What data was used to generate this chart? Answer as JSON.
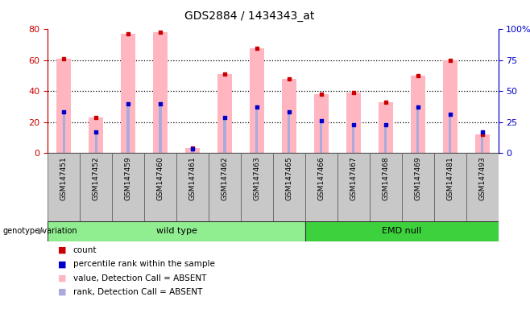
{
  "title": "GDS2884 / 1434343_at",
  "samples": [
    "GSM147451",
    "GSM147452",
    "GSM147459",
    "GSM147460",
    "GSM147461",
    "GSM147462",
    "GSM147463",
    "GSM147465",
    "GSM147466",
    "GSM147467",
    "GSM147468",
    "GSM147469",
    "GSM147481",
    "GSM147493"
  ],
  "pink_values": [
    61,
    23,
    77,
    78,
    3,
    51,
    68,
    48,
    38,
    39,
    33,
    50,
    60,
    12
  ],
  "blue_ranks": [
    33,
    17,
    40,
    40,
    3,
    29,
    37,
    33,
    26,
    23,
    23,
    37,
    31,
    17
  ],
  "groups": [
    {
      "label": "wild type",
      "start": 0,
      "end": 8,
      "color": "#90EE90"
    },
    {
      "label": "EMD null",
      "start": 8,
      "end": 14,
      "color": "#3DD13D"
    }
  ],
  "ylim_left": [
    0,
    80
  ],
  "ylim_right": [
    0,
    100
  ],
  "yticks_left": [
    0,
    20,
    40,
    60,
    80
  ],
  "yticks_right": [
    0,
    25,
    50,
    75,
    100
  ],
  "ytick_labels_right": [
    "0",
    "25",
    "50",
    "75",
    "100%"
  ],
  "left_axis_color": "#CC0000",
  "right_axis_color": "#0000CC",
  "bar_pink": "#FFB6C1",
  "bar_blue": "#AAAADD",
  "dot_red": "#CC0000",
  "dot_blue": "#0000CC",
  "legend_items": [
    {
      "color": "#CC0000",
      "label": "count"
    },
    {
      "color": "#0000CC",
      "label": "percentile rank within the sample"
    },
    {
      "color": "#FFB6C1",
      "label": "value, Detection Call = ABSENT"
    },
    {
      "color": "#AAAADD",
      "label": "rank, Detection Call = ABSENT"
    }
  ],
  "group_label_prefix": "genotype/variation",
  "tick_label_bg": "#C8C8C8",
  "grid_yticks": [
    20,
    40,
    60
  ]
}
